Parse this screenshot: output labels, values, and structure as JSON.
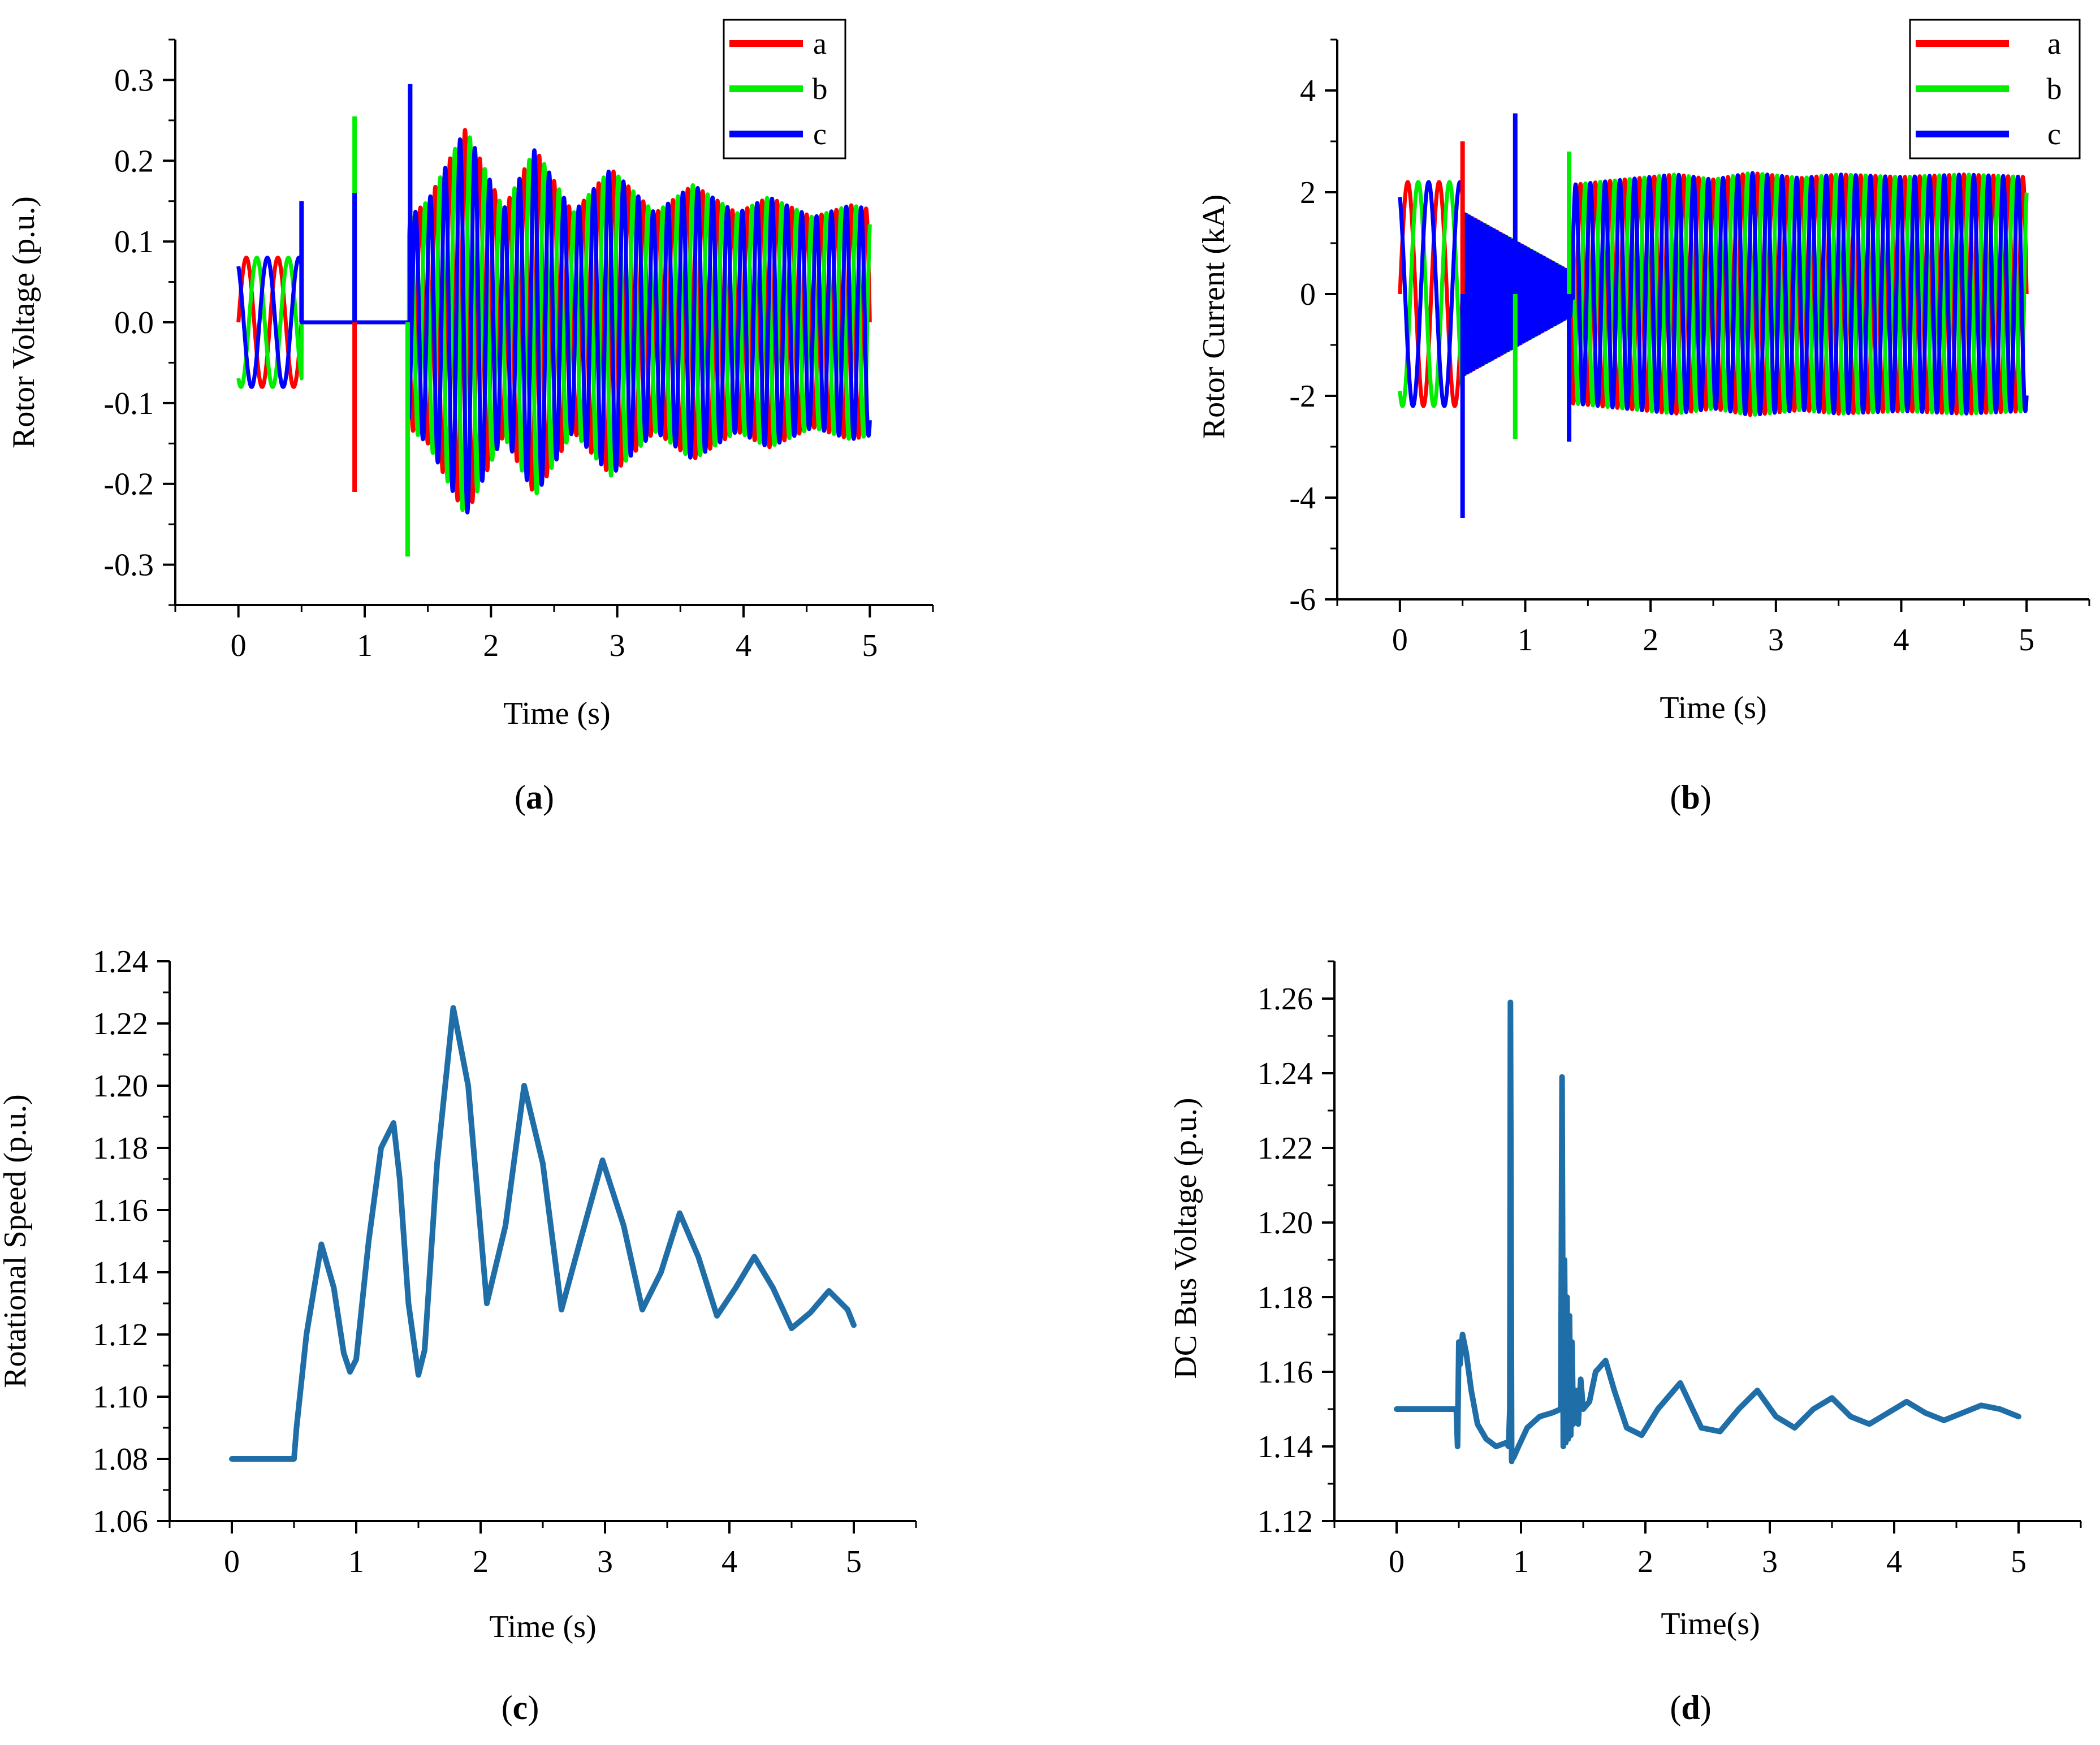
{
  "figure": {
    "panels": [
      "a",
      "b",
      "c",
      "d"
    ]
  },
  "chart_data": [
    {
      "id": "a",
      "type": "line",
      "panel_label": "a",
      "xlabel": "Time (s)",
      "ylabel": "Rotor Voltage (p.u.)",
      "xlim": [
        -0.5,
        5.5
      ],
      "ylim": [
        -0.35,
        0.35
      ],
      "xticks": [
        0,
        1,
        2,
        3,
        4,
        5
      ],
      "xtick_labels": [
        "0",
        "1",
        "2",
        "3",
        "4",
        "5"
      ],
      "yticks": [
        -0.3,
        -0.2,
        -0.1,
        0.0,
        0.1,
        0.2,
        0.3
      ],
      "ytick_labels": [
        "-0.3",
        "-0.2",
        "-0.1",
        "0.0",
        "0.1",
        "0.2",
        "0.3"
      ],
      "legend": {
        "position": "top-right",
        "entries": [
          "a",
          "b",
          "c"
        ]
      },
      "series": [
        {
          "name": "a",
          "color": "#ff0000",
          "phase_deg": 0
        },
        {
          "name": "b",
          "color": "#00ee00",
          "phase_deg": 120
        },
        {
          "name": "c",
          "color": "#0000ff",
          "phase_deg": 240
        }
      ],
      "waveform": {
        "kind": "three_phase",
        "t_end": 5.0,
        "segments": [
          {
            "t0": 0.0,
            "t1": 0.5,
            "freq": 4.0,
            "amp_start": 0.08,
            "amp_end": 0.08
          },
          {
            "t0": 0.5,
            "t1": 1.35,
            "freq": 0.0,
            "amp_start": 0.0,
            "amp_end": 0.0
          },
          {
            "t0": 1.35,
            "t1": 5.0,
            "freq": 8.5,
            "amp_start": 0.13,
            "amp_end": 0.135
          }
        ],
        "envelope_peaks": [
          [
            1.35,
            0.13
          ],
          [
            1.5,
            0.15
          ],
          [
            1.8,
            0.24
          ],
          [
            2.1,
            0.14
          ],
          [
            2.35,
            0.215
          ],
          [
            2.65,
            0.135
          ],
          [
            2.95,
            0.19
          ],
          [
            3.3,
            0.135
          ],
          [
            3.6,
            0.17
          ],
          [
            3.95,
            0.135
          ],
          [
            4.2,
            0.155
          ],
          [
            4.55,
            0.13
          ],
          [
            4.85,
            0.145
          ],
          [
            5.0,
            0.14
          ]
        ],
        "spikes": [
          {
            "t": 0.5,
            "series": "c",
            "value": 0.15
          },
          {
            "t": 0.92,
            "series": "b",
            "value": 0.255
          },
          {
            "t": 0.92,
            "series": "a",
            "value": -0.21
          },
          {
            "t": 0.92,
            "series": "c",
            "value": 0.16
          },
          {
            "t": 1.34,
            "series": "b",
            "value": -0.29
          },
          {
            "t": 1.36,
            "series": "c",
            "value": 0.295
          }
        ]
      }
    },
    {
      "id": "b",
      "type": "line",
      "panel_label": "b",
      "xlabel": "Time (s)",
      "ylabel": "Rotor Current (kA)",
      "xlim": [
        -0.5,
        5.5
      ],
      "ylim": [
        -6,
        5
      ],
      "xticks": [
        0,
        1,
        2,
        3,
        4,
        5
      ],
      "xtick_labels": [
        "0",
        "1",
        "2",
        "3",
        "4",
        "5"
      ],
      "yticks": [
        -6,
        -4,
        -2,
        0,
        2,
        4
      ],
      "ytick_labels": [
        "-6",
        "-4",
        "-2",
        "0",
        "2",
        "4"
      ],
      "legend": {
        "position": "top-right",
        "entries": [
          "a",
          "b",
          "c"
        ]
      },
      "series": [
        {
          "name": "a",
          "color": "#ff0000",
          "phase_deg": 0
        },
        {
          "name": "b",
          "color": "#00ee00",
          "phase_deg": 120
        },
        {
          "name": "c",
          "color": "#0000ff",
          "phase_deg": 240
        }
      ],
      "waveform": {
        "kind": "three_phase",
        "t_end": 5.0,
        "segments": [
          {
            "t0": 0.0,
            "t1": 0.5,
            "freq": 4.0,
            "amp_start": 2.2,
            "amp_end": 2.2
          },
          {
            "t0": 0.5,
            "t1": 1.38,
            "freq": 40.0,
            "amp_start": 1.6,
            "amp_end": 0.4
          },
          {
            "t0": 1.38,
            "t1": 5.0,
            "freq": 8.5,
            "amp_start": 2.2,
            "amp_end": 2.3
          }
        ],
        "envelope_peaks": [
          [
            1.38,
            2.15
          ],
          [
            2.2,
            2.35
          ],
          [
            2.5,
            2.25
          ],
          [
            2.8,
            2.38
          ],
          [
            3.2,
            2.28
          ],
          [
            3.5,
            2.35
          ],
          [
            4.0,
            2.3
          ],
          [
            4.5,
            2.35
          ],
          [
            5.0,
            2.3
          ]
        ],
        "spikes": [
          {
            "t": 0.5,
            "series": "a",
            "value": 3.0
          },
          {
            "t": 0.5,
            "series": "c",
            "value": -4.4
          },
          {
            "t": 0.92,
            "series": "c",
            "value": 3.55
          },
          {
            "t": 0.92,
            "series": "b",
            "value": -2.85
          },
          {
            "t": 1.35,
            "series": "b",
            "value": 2.8
          },
          {
            "t": 1.35,
            "series": "c",
            "value": -2.9
          }
        ]
      }
    },
    {
      "id": "c",
      "type": "line",
      "panel_label": "c",
      "xlabel": "Time (s)",
      "ylabel": "Rotational Speed (p.u.)",
      "xlim": [
        -0.5,
        5.5
      ],
      "ylim": [
        1.06,
        1.24
      ],
      "xticks": [
        0,
        1,
        2,
        3,
        4,
        5
      ],
      "xtick_labels": [
        "0",
        "1",
        "2",
        "3",
        "4",
        "5"
      ],
      "yticks": [
        1.06,
        1.08,
        1.1,
        1.12,
        1.14,
        1.16,
        1.18,
        1.2,
        1.22,
        1.24
      ],
      "ytick_labels": [
        "1.06",
        "1.08",
        "1.10",
        "1.12",
        "1.14",
        "1.16",
        "1.18",
        "1.20",
        "1.22",
        "1.24"
      ],
      "series": [
        {
          "name": "speed",
          "color": "#1f6ea8",
          "x": [
            0,
            0.5,
            0.52,
            0.6,
            0.72,
            0.82,
            0.9,
            0.95,
            1.0,
            1.1,
            1.2,
            1.3,
            1.35,
            1.42,
            1.5,
            1.55,
            1.65,
            1.78,
            1.9,
            2.05,
            2.2,
            2.35,
            2.5,
            2.65,
            2.8,
            2.98,
            3.15,
            3.3,
            3.45,
            3.6,
            3.75,
            3.9,
            4.05,
            4.2,
            4.35,
            4.5,
            4.65,
            4.8,
            4.95,
            5.0
          ],
          "y": [
            1.08,
            1.08,
            1.09,
            1.12,
            1.149,
            1.135,
            1.114,
            1.108,
            1.112,
            1.15,
            1.18,
            1.188,
            1.17,
            1.13,
            1.107,
            1.115,
            1.175,
            1.225,
            1.2,
            1.13,
            1.155,
            1.2,
            1.175,
            1.128,
            1.15,
            1.176,
            1.155,
            1.128,
            1.14,
            1.159,
            1.145,
            1.126,
            1.135,
            1.145,
            1.135,
            1.122,
            1.127,
            1.134,
            1.128,
            1.123
          ]
        }
      ]
    },
    {
      "id": "d",
      "type": "line",
      "panel_label": "d",
      "xlabel": "Time(s)",
      "ylabel": "DC Bus Voltage (p.u.)",
      "xlim": [
        -0.5,
        5.5
      ],
      "ylim": [
        1.12,
        1.27
      ],
      "xticks": [
        0,
        1,
        2,
        3,
        4,
        5
      ],
      "xtick_labels": [
        "0",
        "1",
        "2",
        "3",
        "4",
        "5"
      ],
      "yticks": [
        1.12,
        1.14,
        1.16,
        1.18,
        1.2,
        1.22,
        1.24,
        1.26
      ],
      "ytick_labels": [
        "1.12",
        "1.14",
        "1.16",
        "1.18",
        "1.20",
        "1.22",
        "1.24",
        "1.26"
      ],
      "series": [
        {
          "name": "dc_voltage",
          "color": "#1f6ea8",
          "x": [
            0,
            0.46,
            0.48,
            0.49,
            0.5,
            0.51,
            0.53,
            0.56,
            0.6,
            0.65,
            0.72,
            0.8,
            0.88,
            0.9,
            0.91,
            0.915,
            0.92,
            0.925,
            0.93,
            0.94,
            0.98,
            1.05,
            1.15,
            1.25,
            1.32,
            1.33,
            1.34,
            1.35,
            1.36,
            1.37,
            1.38,
            1.39,
            1.4,
            1.41,
            1.42,
            1.44,
            1.46,
            1.48,
            1.5,
            1.55,
            1.6,
            1.68,
            1.75,
            1.85,
            1.97,
            2.1,
            2.28,
            2.45,
            2.6,
            2.75,
            2.9,
            3.05,
            3.2,
            3.35,
            3.5,
            3.65,
            3.8,
            3.95,
            4.1,
            4.25,
            4.4,
            4.55,
            4.7,
            4.85,
            5.0
          ],
          "y": [
            1.15,
            1.15,
            1.15,
            1.14,
            1.168,
            1.162,
            1.17,
            1.165,
            1.155,
            1.146,
            1.142,
            1.14,
            1.141,
            1.14,
            1.15,
            1.259,
            1.2,
            1.136,
            1.138,
            1.137,
            1.14,
            1.145,
            1.148,
            1.149,
            1.15,
            1.239,
            1.14,
            1.19,
            1.141,
            1.18,
            1.142,
            1.175,
            1.143,
            1.168,
            1.146,
            1.155,
            1.146,
            1.158,
            1.15,
            1.152,
            1.16,
            1.163,
            1.155,
            1.145,
            1.143,
            1.15,
            1.157,
            1.145,
            1.144,
            1.15,
            1.155,
            1.148,
            1.145,
            1.15,
            1.153,
            1.148,
            1.146,
            1.149,
            1.152,
            1.149,
            1.147,
            1.149,
            1.151,
            1.15,
            1.148
          ]
        }
      ]
    }
  ]
}
